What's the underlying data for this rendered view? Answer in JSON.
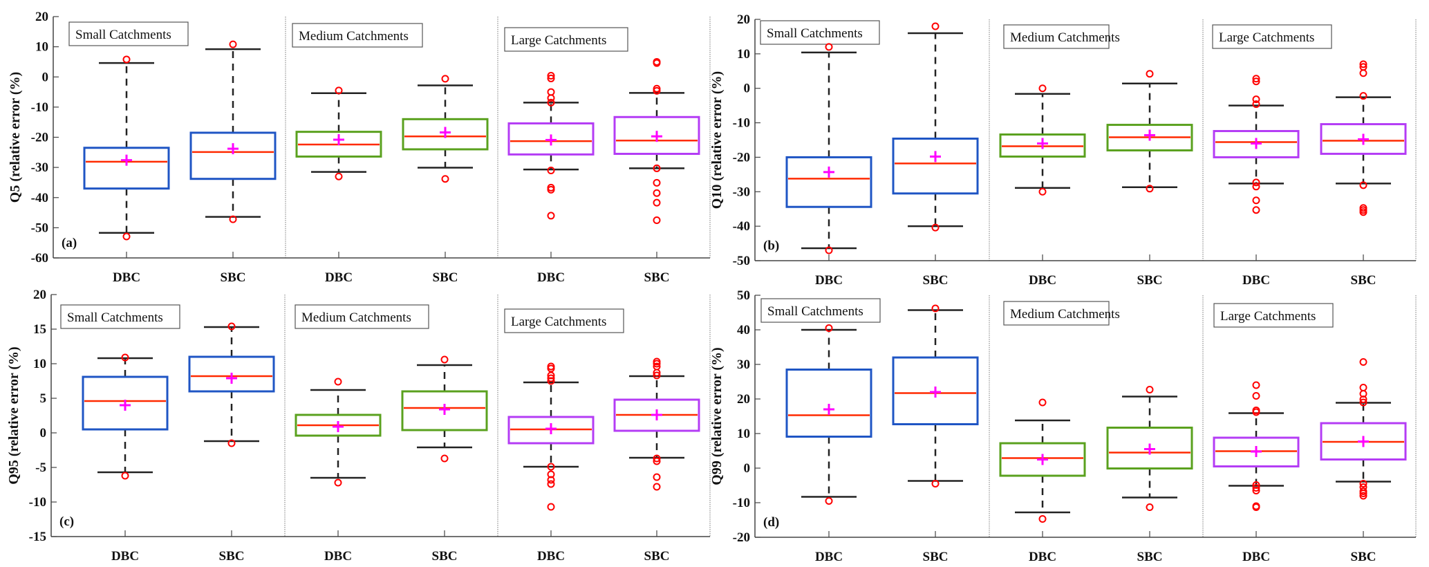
{
  "figure": {
    "description": "Box plots of relative error (%) of flow quantiles for DBC and SBC across catchment sizes"
  },
  "colors": {
    "small": "#1f55c4",
    "medium": "#5aa11e",
    "large": "#b43cf5",
    "median": "#ff2a00",
    "mean": "#ff00ff",
    "outlier": "#ff0000",
    "whisker": "#222222",
    "axis": "#444444"
  },
  "chart_data": [
    {
      "type": "box",
      "panel": "(a)",
      "ylabel": "Q5 (relative error (%)",
      "ylim": [
        -60,
        20
      ],
      "yticks": [
        -60,
        -50,
        -40,
        -30,
        -20,
        -10,
        0,
        10,
        20
      ],
      "groups": [
        "Small Catchments",
        "Medium Catchments",
        "Large Catchments"
      ],
      "categories": [
        "DBC",
        "SBC",
        "DBC",
        "SBC",
        "DBC",
        "SBC"
      ],
      "boxes": [
        {
          "group": "small",
          "label": "DBC",
          "q1": -37,
          "median": -28.1,
          "q3": -23.5,
          "mean": -27.6,
          "whisker_low": -51.7,
          "whisker_high": 4.6,
          "outliers": [
            5.8,
            -52.9
          ]
        },
        {
          "group": "small",
          "label": "SBC",
          "q1": -33.8,
          "median": -24.9,
          "q3": -18.5,
          "mean": -23.8,
          "whisker_low": -46.4,
          "whisker_high": 9.2,
          "outliers": [
            10.8,
            -47.2
          ]
        },
        {
          "group": "medium",
          "label": "DBC",
          "q1": -26.4,
          "median": -22.4,
          "q3": -18.2,
          "mean": -20.8,
          "whisker_low": -31.5,
          "whisker_high": -5.4,
          "outliers": [
            -4.5,
            -33
          ]
        },
        {
          "group": "medium",
          "label": "SBC",
          "q1": -24,
          "median": -19.7,
          "q3": -14,
          "mean": -18.4,
          "whisker_low": -30.1,
          "whisker_high": -2.8,
          "outliers": [
            -0.6,
            -33.8
          ]
        },
        {
          "group": "large",
          "label": "DBC",
          "q1": -25.7,
          "median": -21.3,
          "q3": -15.4,
          "mean": -20.9,
          "whisker_low": -30.7,
          "whisker_high": -8.5,
          "outliers": [
            0.4,
            -0.5,
            -5,
            -7,
            -8.5,
            -31,
            -36.7,
            -37.4,
            -46
          ]
        },
        {
          "group": "large",
          "label": "SBC",
          "q1": -25.5,
          "median": -21.1,
          "q3": -13.3,
          "mean": -19.7,
          "whisker_low": -30.3,
          "whisker_high": -5.3,
          "outliers": [
            5,
            4.6,
            -3.9,
            -4.6,
            -30.3,
            -35.1,
            -38.5,
            -41.7,
            -47.5
          ]
        }
      ]
    },
    {
      "type": "box",
      "panel": "(b)",
      "ylabel": "Q10 (relative error (%)",
      "ylim": [
        -50,
        20
      ],
      "yticks": [
        -50,
        -40,
        -30,
        -20,
        -10,
        0,
        10,
        20
      ],
      "groups": [
        "Small Catchments",
        "Medium Catchments",
        "Large Catchments"
      ],
      "categories": [
        "DBC",
        "SBC",
        "DBC",
        "SBC",
        "DBC",
        "SBC"
      ],
      "boxes": [
        {
          "group": "small",
          "label": "DBC",
          "q1": -34.4,
          "median": -26.2,
          "q3": -20,
          "mean": -24.3,
          "whisker_low": -46.4,
          "whisker_high": 10.4,
          "outliers": [
            12,
            -47
          ]
        },
        {
          "group": "small",
          "label": "SBC",
          "q1": -30.5,
          "median": -21.8,
          "q3": -14.6,
          "mean": -19.8,
          "whisker_low": -40,
          "whisker_high": 16,
          "outliers": [
            18,
            -40.4
          ]
        },
        {
          "group": "medium",
          "label": "DBC",
          "q1": -19.8,
          "median": -16.8,
          "q3": -13.4,
          "mean": -16,
          "whisker_low": -28.9,
          "whisker_high": -1.6,
          "outliers": [
            0,
            -30
          ]
        },
        {
          "group": "medium",
          "label": "SBC",
          "q1": -18,
          "median": -14.2,
          "q3": -10.6,
          "mean": -13.6,
          "whisker_low": -28.7,
          "whisker_high": 1.4,
          "outliers": [
            4.2,
            -29.1
          ]
        },
        {
          "group": "large",
          "label": "DBC",
          "q1": -20,
          "median": -15.6,
          "q3": -12.4,
          "mean": -16,
          "whisker_low": -27.6,
          "whisker_high": -5,
          "outliers": [
            2.8,
            2,
            -3.2,
            -4.6,
            -27.3,
            -28.5,
            -32.5,
            -35.3
          ]
        },
        {
          "group": "large",
          "label": "SBC",
          "q1": -19,
          "median": -15.2,
          "q3": -10.4,
          "mean": -14.8,
          "whisker_low": -27.6,
          "whisker_high": -2.6,
          "outliers": [
            7,
            6.2,
            4.4,
            -2.2,
            -28.1,
            -34.7,
            -35.3,
            -35.9
          ]
        }
      ]
    },
    {
      "type": "box",
      "panel": "(c)",
      "ylabel": "Q95 (relative error (%)",
      "ylim": [
        -15,
        20
      ],
      "yticks": [
        -15,
        -10,
        -5,
        0,
        5,
        10,
        15,
        20
      ],
      "groups": [
        "Small Catchments",
        "Medium Catchments",
        "Large Catchments"
      ],
      "categories": [
        "DBC",
        "SBC",
        "DBC",
        "SBC",
        "DBC",
        "SBC"
      ],
      "boxes": [
        {
          "group": "small",
          "label": "DBC",
          "q1": 0.5,
          "median": 4.6,
          "q3": 8.1,
          "mean": 4,
          "whisker_low": -5.7,
          "whisker_high": 10.8,
          "outliers": [
            10.9,
            -6.2
          ]
        },
        {
          "group": "small",
          "label": "SBC",
          "q1": 6,
          "median": 8.2,
          "q3": 11,
          "mean": 7.9,
          "whisker_low": -1.2,
          "whisker_high": 15.3,
          "outliers": [
            15.4,
            -1.5
          ]
        },
        {
          "group": "medium",
          "label": "DBC",
          "q1": -0.4,
          "median": 1.1,
          "q3": 2.6,
          "mean": 0.9,
          "whisker_low": -6.5,
          "whisker_high": 6.2,
          "outliers": [
            7.4,
            -7.2
          ]
        },
        {
          "group": "medium",
          "label": "SBC",
          "q1": 0.4,
          "median": 3.6,
          "q3": 6,
          "mean": 3.4,
          "whisker_low": -2.1,
          "whisker_high": 9.8,
          "outliers": [
            10.6,
            -3.7
          ]
        },
        {
          "group": "large",
          "label": "DBC",
          "q1": -1.5,
          "median": 0.5,
          "q3": 2.3,
          "mean": 0.6,
          "whisker_low": -4.9,
          "whisker_high": 7.3,
          "outliers": [
            9.6,
            9.3,
            8.3,
            7.9,
            7.5,
            -4.9,
            -6,
            -6.8,
            -7.4,
            -10.7
          ]
        },
        {
          "group": "large",
          "label": "SBC",
          "q1": 0.3,
          "median": 2.6,
          "q3": 4.8,
          "mean": 2.6,
          "whisker_low": -3.6,
          "whisker_high": 8.2,
          "outliers": [
            10.3,
            10,
            9.6,
            8.7,
            8.3,
            -3.7,
            -4.1,
            -6.4,
            -7.8
          ]
        }
      ]
    },
    {
      "type": "box",
      "panel": "(d)",
      "ylabel": "Q99 (relative error (%)",
      "ylim": [
        -20,
        50
      ],
      "yticks": [
        -20,
        -10,
        0,
        10,
        20,
        30,
        40,
        50
      ],
      "groups": [
        "Small Catchments",
        "Medium Catchments",
        "Large Catchments"
      ],
      "categories": [
        "DBC",
        "SBC",
        "DBC",
        "SBC",
        "DBC",
        "SBC"
      ],
      "boxes": [
        {
          "group": "small",
          "label": "DBC",
          "q1": 9.1,
          "median": 15.3,
          "q3": 28.5,
          "mean": 17,
          "whisker_low": -8.3,
          "whisker_high": 40,
          "outliers": [
            40.5,
            -9.5
          ]
        },
        {
          "group": "small",
          "label": "SBC",
          "q1": 12.7,
          "median": 21.7,
          "q3": 32,
          "mean": 22,
          "whisker_low": -3.7,
          "whisker_high": 45.7,
          "outliers": [
            46.2,
            -4.5
          ]
        },
        {
          "group": "medium",
          "label": "DBC",
          "q1": -2.2,
          "median": 2.9,
          "q3": 7.2,
          "mean": 2.5,
          "whisker_low": -12.8,
          "whisker_high": 13.8,
          "outliers": [
            19,
            -14.7
          ]
        },
        {
          "group": "medium",
          "label": "SBC",
          "q1": -0.1,
          "median": 4.5,
          "q3": 11.7,
          "mean": 5.5,
          "whisker_low": -8.5,
          "whisker_high": 20.7,
          "outliers": [
            22.7,
            -11.3
          ]
        },
        {
          "group": "large",
          "label": "DBC",
          "q1": 0.5,
          "median": 4.9,
          "q3": 8.8,
          "mean": 4.8,
          "whisker_low": -5.1,
          "whisker_high": 15.9,
          "outliers": [
            24,
            20.9,
            16.7,
            16.2,
            -4.9,
            -5.7,
            -6.5,
            -11,
            -11.3
          ]
        },
        {
          "group": "large",
          "label": "SBC",
          "q1": 2.5,
          "median": 7.6,
          "q3": 13,
          "mean": 7.7,
          "whisker_low": -3.9,
          "whisker_high": 18.9,
          "outliers": [
            30.7,
            23.3,
            21.5,
            19.9,
            19,
            -4.5,
            -5.5,
            -6.7,
            -7.3,
            -8
          ]
        }
      ]
    }
  ]
}
